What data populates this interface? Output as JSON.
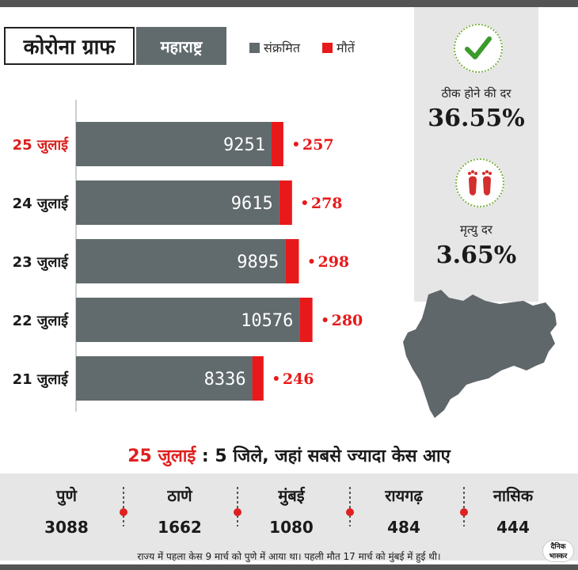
{
  "header": {
    "title": "कोरोना ग्राफ",
    "state": "महाराष्ट्र",
    "legend": [
      {
        "label": "संक्रमित",
        "color": "#616a6d"
      },
      {
        "label": "मौतें",
        "color": "#e8191b"
      }
    ]
  },
  "chart_data": {
    "type": "bar",
    "orientation": "horizontal",
    "categories": [
      "25 जुलाई",
      "24 जुलाई",
      "23 जुलाई",
      "22 जुलाई",
      "21 जुलाई"
    ],
    "highlight_category": "25 जुलाई",
    "series": [
      {
        "name": "संक्रमित",
        "values": [
          9251,
          9615,
          9895,
          10576,
          8336
        ],
        "color": "#616a6d"
      },
      {
        "name": "मौतें",
        "values": [
          257,
          278,
          298,
          280,
          246
        ],
        "color": "#e8191b"
      }
    ],
    "value_labels": {
      "cases": [
        "9251",
        "9615",
        "9895",
        "10576",
        "8336"
      ],
      "deaths": [
        "257",
        "278",
        "298",
        "280",
        "246"
      ]
    },
    "highlight_color": "#d9201c"
  },
  "stats": {
    "recovery": {
      "label": "ठीक होने की दर",
      "value": "36.55%",
      "icon": "checkmark-icon"
    },
    "mortality": {
      "label": "मृत्यु दर",
      "value": "3.65%",
      "icon": "footprints-icon"
    }
  },
  "districts": {
    "title_date": "25 जुलाई",
    "title_sep": " : ",
    "title_text": "5 जिले, जहां सबसे ज्यादा केस आए",
    "items": [
      {
        "name": "पुणे",
        "value": "3088"
      },
      {
        "name": "ठाणे",
        "value": "1662"
      },
      {
        "name": "मुंबई",
        "value": "1080"
      },
      {
        "name": "रायगढ़",
        "value": "484"
      },
      {
        "name": "नासिक",
        "value": "444"
      }
    ]
  },
  "footnote": "राज्य में पहला केस 9 मार्च को पुणे में आया था। पहली मौत 17 मार्च को मुंबई में हुई थी।",
  "logo": {
    "line1": "दैनिक",
    "line2": "भास्कर"
  }
}
